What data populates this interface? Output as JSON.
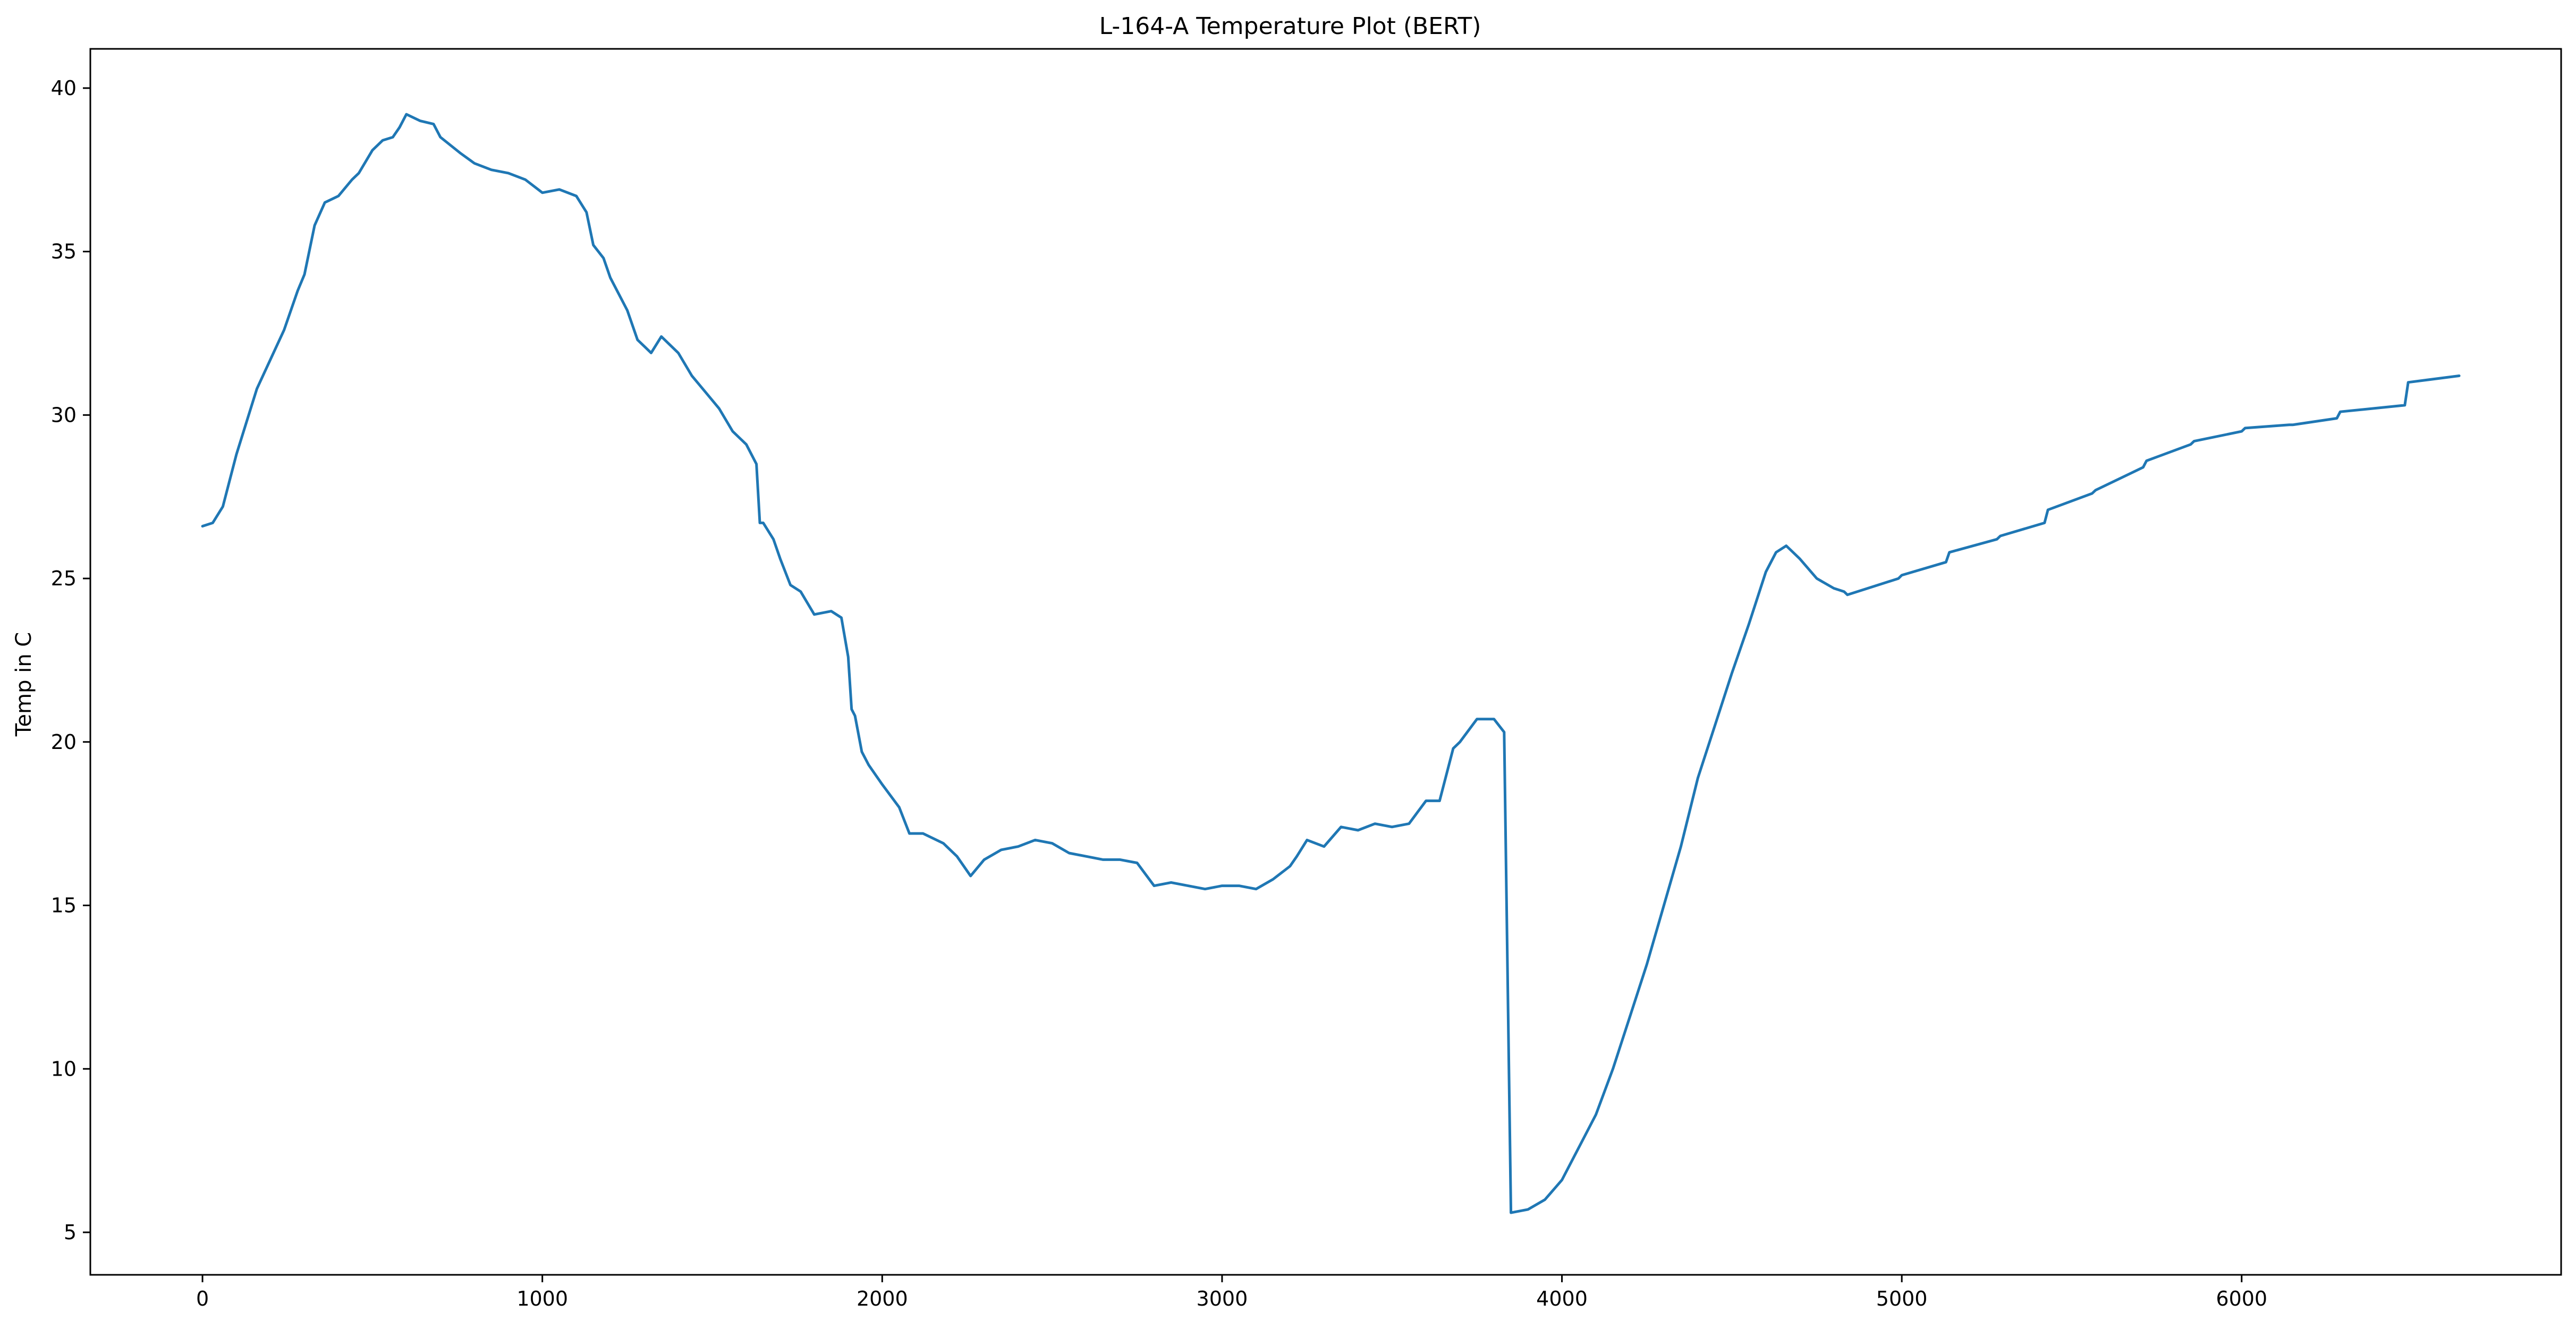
{
  "chart_data": {
    "type": "line",
    "title": "L-164-A Temperature Plot (BERT)",
    "xlabel": "",
    "ylabel": "Temp in C",
    "xlim": [
      -330,
      6940
    ],
    "ylim": [
      3.7,
      41.2
    ],
    "xticks": [
      0,
      1000,
      2000,
      3000,
      4000,
      5000,
      6000
    ],
    "xtick_labels": [
      "0",
      "1000",
      "2000",
      "3000",
      "4000",
      "5000",
      "6000"
    ],
    "yticks": [
      5,
      10,
      15,
      20,
      25,
      30,
      35,
      40
    ],
    "ytick_labels": [
      "5",
      "10",
      "15",
      "20",
      "25",
      "30",
      "35",
      "40"
    ],
    "grid": false,
    "colors": {
      "line": "#1f77b4",
      "axes": "#000000",
      "background": "#ffffff"
    },
    "series": [
      {
        "x": [
          0,
          30,
          60,
          80,
          100,
          130,
          160,
          200,
          240,
          270,
          280,
          300,
          330,
          360,
          400,
          440,
          460,
          500,
          530,
          560,
          580,
          600,
          640,
          680,
          700,
          760,
          800,
          850,
          900,
          950,
          1000,
          1050,
          1100,
          1130,
          1150,
          1180,
          1200,
          1250,
          1280,
          1300,
          1320,
          1350,
          1400,
          1440,
          1480,
          1520,
          1560,
          1600,
          1630,
          1640,
          1650,
          1680,
          1700,
          1730,
          1760,
          1800,
          1850,
          1880,
          1900,
          1910,
          1920,
          1940,
          1960,
          2000,
          2050,
          2080,
          2120,
          2180,
          2220,
          2260,
          2300,
          2350,
          2400,
          2450,
          2500,
          2550,
          2600,
          2650,
          2700,
          2750,
          2800,
          2850,
          2900,
          2950,
          3000,
          3050,
          3100,
          3150,
          3200,
          3220,
          3250,
          3300,
          3350,
          3400,
          3450,
          3500,
          3550,
          3600,
          3640,
          3650,
          3680,
          3700,
          3750,
          3800,
          3830,
          3830,
          3850,
          3900,
          3950,
          4000,
          4050,
          4100,
          4150,
          4200,
          4250,
          4300,
          4350,
          4400,
          4450,
          4500,
          4550,
          4600,
          4630,
          4660,
          4700,
          4750,
          4800,
          4830,
          4840,
          4900,
          4990,
          5000,
          5130,
          5140,
          5280,
          5290,
          5420,
          5430,
          5560,
          5570,
          5710,
          5720,
          5850,
          5860,
          6000,
          6010,
          6140,
          6150,
          6280,
          6290,
          6480,
          6490,
          6640
        ],
        "y": [
          26.6,
          26.7,
          27.2,
          28.0,
          28.8,
          29.8,
          30.8,
          31.7,
          32.6,
          33.5,
          33.8,
          34.3,
          35.8,
          36.5,
          36.7,
          37.2,
          37.4,
          38.1,
          38.4,
          38.5,
          38.8,
          39.2,
          39.0,
          38.9,
          38.5,
          38.0,
          37.7,
          37.5,
          37.4,
          37.2,
          36.8,
          36.9,
          36.7,
          36.2,
          35.2,
          34.8,
          34.2,
          33.2,
          32.3,
          32.1,
          31.9,
          32.4,
          31.9,
          31.2,
          30.7,
          30.2,
          29.5,
          29.1,
          28.5,
          26.7,
          26.7,
          26.2,
          25.6,
          24.8,
          24.6,
          23.9,
          24.0,
          23.8,
          22.6,
          21.0,
          20.8,
          19.7,
          19.3,
          18.7,
          18.0,
          17.2,
          17.2,
          16.9,
          16.5,
          15.9,
          16.4,
          16.7,
          16.8,
          17.0,
          16.9,
          16.6,
          16.5,
          16.4,
          16.4,
          16.3,
          15.6,
          15.7,
          15.6,
          15.5,
          15.6,
          15.6,
          15.5,
          15.8,
          16.2,
          16.5,
          17.0,
          16.8,
          17.4,
          17.3,
          17.5,
          17.4,
          17.5,
          18.2,
          18.2,
          18.6,
          19.8,
          20.0,
          20.7,
          20.7,
          20.3,
          20.3,
          5.6,
          5.7,
          6.0,
          6.6,
          7.6,
          8.6,
          10.0,
          11.6,
          13.2,
          15.0,
          16.8,
          18.9,
          20.5,
          22.1,
          23.6,
          25.2,
          25.8,
          26.0,
          25.6,
          25.0,
          24.7,
          24.6,
          24.5,
          24.7,
          25.0,
          25.1,
          25.5,
          25.8,
          26.2,
          26.3,
          26.7,
          27.1,
          27.6,
          27.7,
          28.4,
          28.6,
          29.1,
          29.2,
          29.5,
          29.6,
          29.7,
          29.7,
          29.9,
          30.1,
          30.3,
          31.0,
          31.2
        ]
      }
    ]
  }
}
